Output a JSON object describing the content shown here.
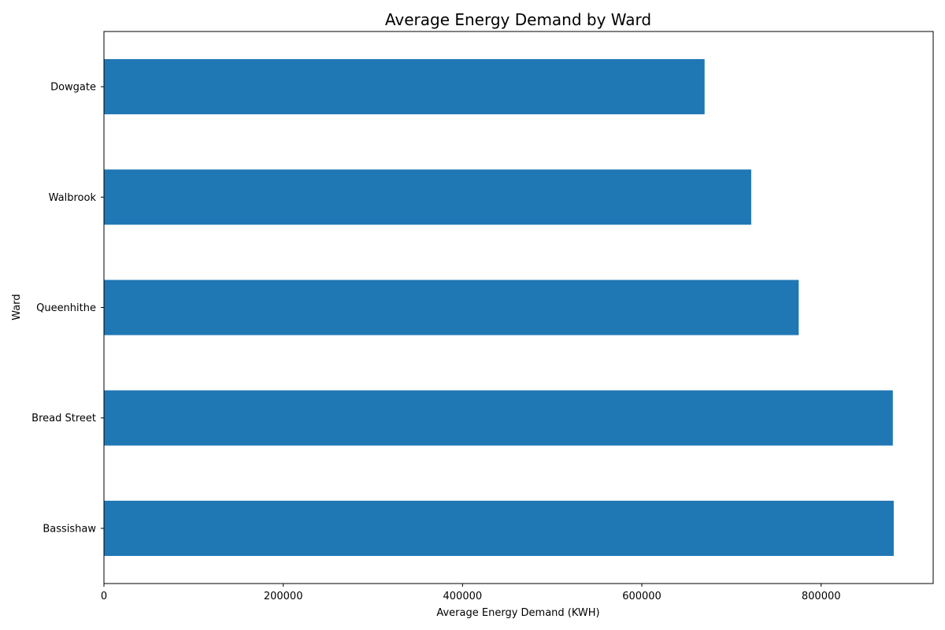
{
  "chart_data": {
    "type": "bar",
    "orientation": "horizontal",
    "title": "Average Energy Demand by Ward",
    "xlabel": "Average Energy Demand (KWH)",
    "ylabel": "Ward",
    "categories": [
      "Dowgate",
      "Walbrook",
      "Queenhithe",
      "Bread Street",
      "Bassishaw"
    ],
    "values": [
      670000,
      722000,
      775000,
      880000,
      881000
    ],
    "xlim": [
      0,
      925000
    ],
    "xticks": [
      0,
      200000,
      400000,
      600000,
      800000
    ],
    "xtick_labels": [
      "0",
      "200000",
      "400000",
      "600000",
      "800000"
    ],
    "bar_color": "#1f77b4",
    "grid": false,
    "legend": "none"
  }
}
